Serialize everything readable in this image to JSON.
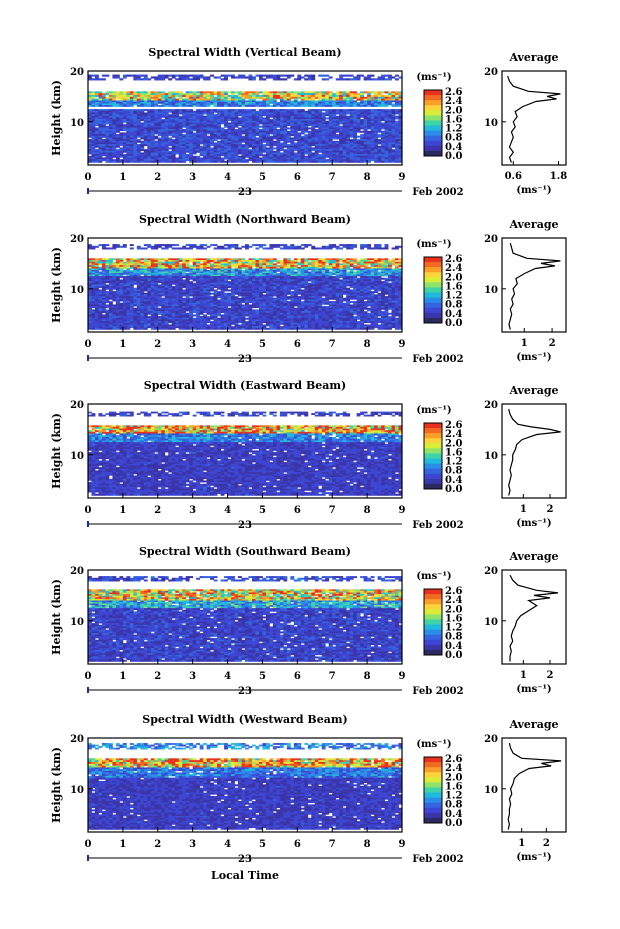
{
  "figure": {
    "xlabel": "Local Time",
    "date_label": "Feb 2002",
    "day_label": "23"
  },
  "colorbar": {
    "unit": "(ms⁻¹)",
    "ticks": [
      "2.6",
      "2.4",
      "2.0",
      "1.6",
      "1.2",
      "0.8",
      "0.4",
      "0.0"
    ],
    "colors": [
      "#e8321e",
      "#f26a22",
      "#f8a02a",
      "#fbd33a",
      "#d8ee3a",
      "#8ee36a",
      "#3fd3a8",
      "#22b9dc",
      "#2a8ee8",
      "#3564df",
      "#3c46d2",
      "#3a35a8",
      "#2a2a60"
    ]
  },
  "chart_data": [
    {
      "type": "heatmap",
      "title": "Spectral Width (Vertical Beam)",
      "ylabel": "Height (km)",
      "x_ticks": [
        "0",
        "1",
        "2",
        "3",
        "4",
        "5",
        "6",
        "7",
        "8",
        "9"
      ],
      "y_ticks": [
        "20",
        "10"
      ],
      "xlim": [
        0,
        9
      ],
      "ylim": [
        1.5,
        20
      ],
      "colorbar_range": [
        0,
        2.8
      ],
      "layers": [
        {
          "y_min": 18.2,
          "y_max": 19.3,
          "level": 0.5
        },
        {
          "y_min": 14.2,
          "y_max": 16.0,
          "level": 1.9
        },
        {
          "y_min": 13.0,
          "y_max": 14.2,
          "level": 0.9
        },
        {
          "y_min": 2.0,
          "y_max": 12.5,
          "level": 0.55
        }
      ],
      "gaps": [
        [
          16.0,
          18.2
        ],
        [
          12.5,
          13.0
        ]
      ],
      "average_panel": {
        "title": "Average",
        "xlabel": "(ms⁻¹)",
        "x_ticks": [
          "0.6",
          "1.8"
        ],
        "xlim": [
          0.3,
          2.0
        ],
        "y_ticks": [
          "20",
          "10"
        ],
        "profile": {
          "height_km": [
            2,
            3,
            4,
            5,
            6,
            7,
            8,
            9,
            10,
            11,
            12,
            13,
            14,
            14.5,
            15,
            15.5,
            16,
            17,
            18,
            19
          ],
          "width": [
            0.55,
            0.5,
            0.6,
            0.5,
            0.55,
            0.6,
            0.55,
            0.65,
            0.6,
            0.7,
            0.65,
            0.85,
            1.2,
            1.75,
            1.5,
            1.85,
            1.0,
            0.6,
            0.5,
            0.45
          ]
        }
      }
    },
    {
      "type": "heatmap",
      "title": "Spectral Width (Northward Beam)",
      "ylabel": "Height (km)",
      "x_ticks": [
        "0",
        "1",
        "2",
        "3",
        "4",
        "5",
        "6",
        "7",
        "8",
        "9"
      ],
      "y_ticks": [
        "20",
        "10"
      ],
      "xlim": [
        0,
        9
      ],
      "ylim": [
        1.5,
        20
      ],
      "colorbar_range": [
        0,
        2.8
      ],
      "layers": [
        {
          "y_min": 17.8,
          "y_max": 18.8,
          "level": 0.5
        },
        {
          "y_min": 14.0,
          "y_max": 16.0,
          "level": 2.1
        },
        {
          "y_min": 12.5,
          "y_max": 14.0,
          "level": 1.0
        },
        {
          "y_min": 2.0,
          "y_max": 12.5,
          "level": 0.5
        }
      ],
      "gaps": [
        [
          16.0,
          17.8
        ]
      ],
      "average_panel": {
        "title": "Average",
        "xlabel": "(ms⁻¹)",
        "x_ticks": [
          "1",
          "2"
        ],
        "xlim": [
          0.2,
          2.5
        ],
        "y_ticks": [
          "20",
          "10"
        ],
        "profile": {
          "height_km": [
            2,
            3,
            4,
            5,
            6,
            7,
            8,
            9,
            10,
            11,
            12,
            13,
            14,
            14.5,
            15,
            15.5,
            16,
            17,
            18,
            19
          ],
          "width": [
            0.5,
            0.45,
            0.5,
            0.55,
            0.5,
            0.6,
            0.55,
            0.65,
            0.6,
            0.75,
            0.7,
            1.0,
            1.4,
            2.1,
            1.6,
            2.3,
            1.1,
            0.6,
            0.55,
            0.5
          ]
        }
      }
    },
    {
      "type": "heatmap",
      "title": "Spectral Width (Eastward Beam)",
      "ylabel": "Height (km)",
      "x_ticks": [
        "0",
        "1",
        "2",
        "3",
        "4",
        "5",
        "6",
        "7",
        "8",
        "9"
      ],
      "y_ticks": [
        "20",
        "10"
      ],
      "xlim": [
        0,
        9
      ],
      "ylim": [
        1.5,
        20
      ],
      "colorbar_range": [
        0,
        2.8
      ],
      "layers": [
        {
          "y_min": 17.6,
          "y_max": 18.5,
          "level": 0.5
        },
        {
          "y_min": 14.2,
          "y_max": 15.8,
          "level": 2.3
        },
        {
          "y_min": 12.5,
          "y_max": 14.2,
          "level": 0.9
        },
        {
          "y_min": 2.0,
          "y_max": 12.5,
          "level": 0.45
        }
      ],
      "gaps": [
        [
          15.8,
          17.6
        ]
      ],
      "average_panel": {
        "title": "Average",
        "xlabel": "(ms⁻¹)",
        "x_ticks": [
          "1",
          "2"
        ],
        "xlim": [
          0.2,
          2.6
        ],
        "y_ticks": [
          "20",
          "10"
        ],
        "profile": {
          "height_km": [
            2,
            3,
            4,
            5,
            6,
            7,
            8,
            9,
            10,
            11,
            12,
            13,
            14,
            14.5,
            15,
            15.5,
            16,
            17,
            18,
            19
          ],
          "width": [
            0.45,
            0.5,
            0.45,
            0.5,
            0.55,
            0.5,
            0.55,
            0.6,
            0.6,
            0.7,
            0.75,
            0.95,
            1.5,
            2.4,
            2.0,
            1.3,
            0.8,
            0.6,
            0.5,
            0.45
          ]
        }
      }
    },
    {
      "type": "heatmap",
      "title": "Spectral Width (Southward Beam)",
      "ylabel": "Height (km)",
      "x_ticks": [
        "0",
        "1",
        "2",
        "3",
        "4",
        "5",
        "6",
        "7",
        "8",
        "9"
      ],
      "y_ticks": [
        "20",
        "10"
      ],
      "xlim": [
        0,
        9
      ],
      "ylim": [
        1.5,
        20
      ],
      "colorbar_range": [
        0,
        2.8
      ],
      "layers": [
        {
          "y_min": 17.8,
          "y_max": 18.8,
          "level": 0.6
        },
        {
          "y_min": 14.0,
          "y_max": 16.2,
          "level": 2.0
        },
        {
          "y_min": 12.5,
          "y_max": 14.0,
          "level": 1.1
        },
        {
          "y_min": 2.0,
          "y_max": 12.5,
          "level": 0.5
        }
      ],
      "gaps": [
        [
          16.2,
          17.8
        ]
      ],
      "average_panel": {
        "title": "Average",
        "xlabel": "(ms⁻¹)",
        "x_ticks": [
          "1",
          "2"
        ],
        "xlim": [
          0.2,
          2.6
        ],
        "y_ticks": [
          "20",
          "10"
        ],
        "profile": {
          "height_km": [
            2,
            3,
            4,
            5,
            6,
            7,
            8,
            9,
            10,
            11,
            12,
            13,
            14,
            14.5,
            15,
            15.5,
            16,
            17,
            18,
            19
          ],
          "width": [
            0.5,
            0.5,
            0.55,
            0.5,
            0.6,
            0.55,
            0.6,
            0.7,
            0.75,
            0.9,
            1.2,
            1.5,
            1.2,
            2.0,
            1.4,
            2.3,
            1.5,
            0.8,
            0.6,
            0.5
          ]
        }
      }
    },
    {
      "type": "heatmap",
      "title": "Spectral Width (Westward Beam)",
      "ylabel": "Height (km)",
      "x_ticks": [
        "0",
        "1",
        "2",
        "3",
        "4",
        "5",
        "6",
        "7",
        "8",
        "9"
      ],
      "y_ticks": [
        "20",
        "10"
      ],
      "xlim": [
        0,
        9
      ],
      "ylim": [
        1.5,
        20
      ],
      "colorbar_range": [
        0,
        2.8
      ],
      "layers": [
        {
          "y_min": 17.8,
          "y_max": 19.0,
          "level": 0.9
        },
        {
          "y_min": 14.2,
          "y_max": 16.0,
          "level": 2.2
        },
        {
          "y_min": 12.2,
          "y_max": 14.2,
          "level": 0.8
        },
        {
          "y_min": 2.0,
          "y_max": 12.2,
          "level": 0.45
        }
      ],
      "gaps": [
        [
          16.0,
          17.8
        ]
      ],
      "average_panel": {
        "title": "Average",
        "xlabel": "(ms⁻¹)",
        "x_ticks": [
          "1",
          "2"
        ],
        "xlim": [
          0.2,
          2.8
        ],
        "y_ticks": [
          "20",
          "10"
        ],
        "profile": {
          "height_km": [
            2,
            3,
            4,
            5,
            6,
            7,
            8,
            9,
            10,
            11,
            12,
            13,
            14,
            14.5,
            15,
            15.5,
            16,
            17,
            18,
            19
          ],
          "width": [
            0.45,
            0.5,
            0.45,
            0.5,
            0.5,
            0.55,
            0.5,
            0.6,
            0.55,
            0.65,
            0.7,
            0.9,
            1.3,
            2.2,
            1.8,
            2.6,
            1.0,
            0.65,
            0.55,
            0.5
          ]
        }
      }
    }
  ]
}
